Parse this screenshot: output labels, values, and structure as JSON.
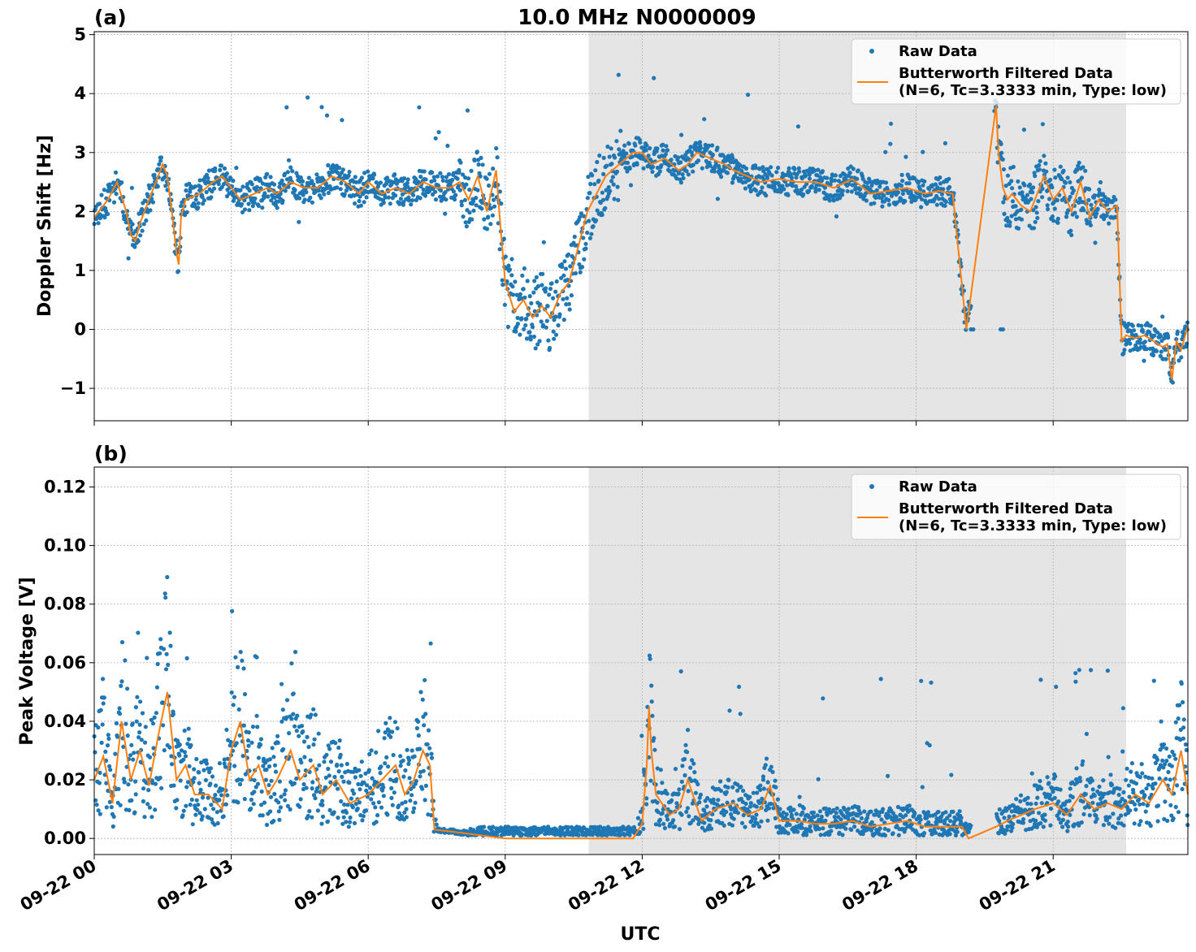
{
  "title": "10.0 MHz N0000009",
  "xlabel": "UTC",
  "colors": {
    "raw": "#1f77b4",
    "filtered": "#ff7f0e",
    "shade": "#e5e5e5",
    "grid": "#b0b0b0"
  },
  "legend": {
    "raw": "Raw Data",
    "filtered_line1": "Butterworth Filtered Data",
    "filtered_line2": "(N=6, Tc=3.3333 min, Type: low)",
    "placement": "upper right"
  },
  "chart_data": [
    {
      "type": "scatter",
      "panel_label": "(a)",
      "ylabel": "Doppler Shift [Hz]",
      "x_tick_labels": [
        "09-22 00",
        "09-22 03",
        "09-22 06",
        "09-22 09",
        "09-22 12",
        "09-22 15",
        "09-22 18",
        "09-22 21"
      ],
      "y_ticks": [
        -1,
        0,
        1,
        2,
        3,
        4,
        5
      ],
      "y_tick_labels": [
        "−1",
        "0",
        "1",
        "2",
        "3",
        "4",
        "5"
      ],
      "xlim_hours": [
        0,
        23.95
      ],
      "ylim": [
        -1.55,
        5.05
      ],
      "grid": true,
      "shaded_span_hours": [
        10.83,
        22.6
      ],
      "series": [
        {
          "name": "Raw Data",
          "kind": "points"
        },
        {
          "name": "Butterworth Filtered Data",
          "kind": "line",
          "x": [
            0,
            0.3,
            0.5,
            0.7,
            0.8,
            0.9,
            1.0,
            1.2,
            1.4,
            1.5,
            1.6,
            1.7,
            1.8,
            1.85,
            1.9,
            2.0,
            2.3,
            2.6,
            2.8,
            3.0,
            3.2,
            3.5,
            3.8,
            4.0,
            4.3,
            4.6,
            4.9,
            5.2,
            5.5,
            5.8,
            6.0,
            6.3,
            6.6,
            6.9,
            7.2,
            7.5,
            7.8,
            8.0,
            8.2,
            8.4,
            8.6,
            8.8,
            8.9,
            9.0,
            9.2,
            9.4,
            9.6,
            9.8,
            10.0,
            10.2,
            10.4,
            10.6,
            10.8,
            11.0,
            11.2,
            11.5,
            11.8,
            12.0,
            12.2,
            12.5,
            12.8,
            13.0,
            13.2,
            13.5,
            13.8,
            14.0,
            14.3,
            14.6,
            15.0,
            15.4,
            15.8,
            16.2,
            16.6,
            17.0,
            17.4,
            17.8,
            18.2,
            18.5,
            18.8,
            19.1,
            19.75,
            19.8,
            19.9,
            20.0,
            20.1,
            20.2,
            20.3,
            20.5,
            20.8,
            21.0,
            21.2,
            21.4,
            21.6,
            21.8,
            22.0,
            22.2,
            22.4,
            22.5,
            22.6,
            22.8,
            23.0,
            23.2,
            23.4,
            23.5,
            23.6,
            23.7,
            23.8,
            23.95
          ],
          "y": [
            1.9,
            2.2,
            2.5,
            2.0,
            1.6,
            1.5,
            1.8,
            2.2,
            2.6,
            2.8,
            2.6,
            2.0,
            1.3,
            1.1,
            1.9,
            2.2,
            2.3,
            2.5,
            2.6,
            2.4,
            2.2,
            2.3,
            2.4,
            2.3,
            2.5,
            2.4,
            2.4,
            2.6,
            2.5,
            2.3,
            2.5,
            2.3,
            2.4,
            2.3,
            2.5,
            2.4,
            2.4,
            2.5,
            2.2,
            2.6,
            2.0,
            2.7,
            1.7,
            0.8,
            0.3,
            0.5,
            0.2,
            0.4,
            0.2,
            0.6,
            0.8,
            1.4,
            2.0,
            2.3,
            2.6,
            2.8,
            3.0,
            3.0,
            2.8,
            2.9,
            2.7,
            2.8,
            3.0,
            2.9,
            2.8,
            2.7,
            2.6,
            2.5,
            2.55,
            2.5,
            2.5,
            2.4,
            2.55,
            2.3,
            2.35,
            2.4,
            2.3,
            2.35,
            2.3,
            0.0,
            3.8,
            3.0,
            2.4,
            2.2,
            2.3,
            2.2,
            2.1,
            2.0,
            2.6,
            2.2,
            2.4,
            2.0,
            2.5,
            1.9,
            2.2,
            2.0,
            2.1,
            -0.2,
            -0.1,
            -0.15,
            -0.1,
            -0.2,
            -0.3,
            -0.25,
            -0.85,
            -0.2,
            -0.35,
            0.05
          ]
        }
      ]
    },
    {
      "type": "scatter",
      "panel_label": "(b)",
      "ylabel": "Peak Voltage [V]",
      "x_tick_labels": [
        "09-22 00",
        "09-22 03",
        "09-22 06",
        "09-22 09",
        "09-22 12",
        "09-22 15",
        "09-22 18",
        "09-22 21"
      ],
      "y_ticks": [
        0,
        0.02,
        0.04,
        0.06,
        0.08,
        0.1,
        0.12
      ],
      "y_tick_labels": [
        "0.00",
        "0.02",
        "0.04",
        "0.06",
        "0.08",
        "0.10",
        "0.12"
      ],
      "xlim_hours": [
        0,
        23.95
      ],
      "ylim": [
        -0.0055,
        0.1268
      ],
      "grid": true,
      "shaded_span_hours": [
        10.83,
        22.6
      ],
      "series": [
        {
          "name": "Raw Data",
          "kind": "points"
        },
        {
          "name": "Butterworth Filtered Data",
          "kind": "line",
          "x": [
            0,
            0.2,
            0.4,
            0.6,
            0.8,
            1.0,
            1.2,
            1.4,
            1.6,
            1.8,
            2.0,
            2.2,
            2.5,
            2.8,
            3.0,
            3.2,
            3.4,
            3.6,
            3.8,
            4.0,
            4.3,
            4.5,
            4.8,
            5.0,
            5.3,
            5.6,
            6.0,
            6.3,
            6.6,
            6.8,
            7.0,
            7.2,
            7.35,
            7.45,
            8.0,
            8.5,
            9.0,
            10.0,
            11.0,
            11.8,
            12.0,
            12.1,
            12.15,
            12.2,
            12.3,
            12.6,
            12.8,
            13.0,
            13.3,
            13.6,
            14.0,
            14.3,
            14.6,
            14.8,
            15.0,
            15.4,
            15.8,
            16.2,
            16.6,
            17.0,
            17.4,
            17.8,
            18.2,
            18.6,
            19.0,
            19.15,
            19.75,
            20.0,
            20.3,
            20.6,
            21.0,
            21.3,
            21.6,
            21.9,
            22.2,
            22.5,
            22.8,
            23.1,
            23.4,
            23.6,
            23.8,
            23.95
          ],
          "y": [
            0.02,
            0.028,
            0.012,
            0.04,
            0.02,
            0.03,
            0.018,
            0.035,
            0.05,
            0.02,
            0.025,
            0.015,
            0.015,
            0.01,
            0.03,
            0.04,
            0.02,
            0.025,
            0.015,
            0.02,
            0.03,
            0.02,
            0.025,
            0.015,
            0.02,
            0.012,
            0.015,
            0.02,
            0.025,
            0.015,
            0.02,
            0.03,
            0.025,
            0.003,
            0.002,
            0.001,
            0.0,
            0.0,
            0.0,
            0.0,
            0.005,
            0.025,
            0.045,
            0.03,
            0.015,
            0.008,
            0.01,
            0.02,
            0.006,
            0.01,
            0.012,
            0.008,
            0.01,
            0.018,
            0.006,
            0.006,
            0.005,
            0.005,
            0.006,
            0.004,
            0.005,
            0.006,
            0.004,
            0.004,
            0.004,
            0.0,
            0.004,
            0.006,
            0.008,
            0.01,
            0.012,
            0.008,
            0.015,
            0.01,
            0.012,
            0.01,
            0.015,
            0.012,
            0.02,
            0.015,
            0.03,
            0.015
          ]
        }
      ]
    }
  ]
}
